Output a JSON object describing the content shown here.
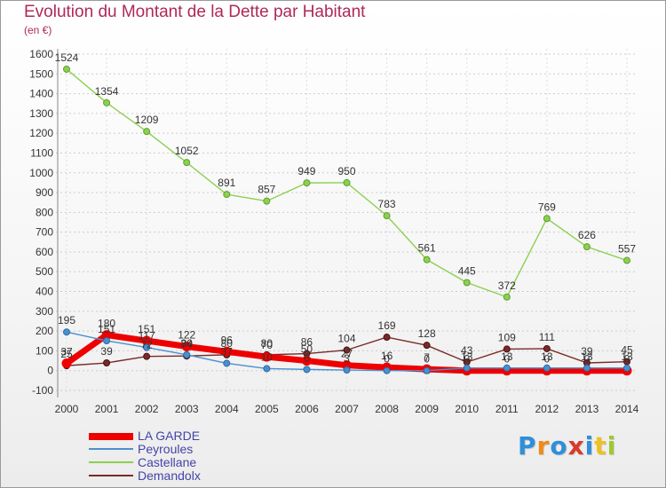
{
  "header": {
    "title": "Evolution du Montant de la Dette par Habitant",
    "subtitle": "(en €)"
  },
  "logo": {
    "text": "Proxiti",
    "letter_colors": [
      "#2f8fd8",
      "#f08a18",
      "#2f8fd8",
      "#d83a2a",
      "#2f8fd8",
      "#f0c020",
      "#a0c830"
    ]
  },
  "colors": {
    "LA GARDE": "#ee0000",
    "Peyroules": "#4a90d0",
    "Castellane": "#8cd050",
    "Demandolx": "#7a2a2a",
    "axis_text": "#333333",
    "grid": "#cccccc"
  },
  "chart_data": {
    "type": "line",
    "title": "Evolution du Montant de la Dette par Habitant",
    "subtitle": "(en €)",
    "x": [
      2000,
      2001,
      2002,
      2003,
      2004,
      2005,
      2006,
      2007,
      2008,
      2009,
      2010,
      2011,
      2012,
      2013,
      2014
    ],
    "ylim": [
      -100,
      1600
    ],
    "yticks": [
      -100,
      0,
      100,
      200,
      300,
      400,
      500,
      600,
      700,
      800,
      900,
      1000,
      1100,
      1200,
      1300,
      1400,
      1500,
      1600
    ],
    "grid": true,
    "legend_position": "bottom-left",
    "series": [
      {
        "name": "LA GARDE",
        "values": [
          37,
          180,
          151,
          122,
          96,
          70,
          50,
          27,
          16,
          7,
          0,
          0,
          0,
          0,
          0
        ]
      },
      {
        "name": "Peyroules",
        "values": [
          195,
          151,
          117,
          80,
          37,
          10,
          6,
          3,
          0,
          0,
          13,
          13,
          13,
          13,
          13
        ]
      },
      {
        "name": "Castellane",
        "values": [
          1524,
          1354,
          1209,
          1052,
          891,
          857,
          949,
          950,
          783,
          561,
          445,
          372,
          769,
          626,
          557
        ]
      },
      {
        "name": "Demandolx",
        "values": [
          25,
          39,
          72,
          74,
          80,
          80,
          86,
          104,
          169,
          128,
          43,
          109,
          111,
          39,
          45
        ]
      }
    ]
  }
}
